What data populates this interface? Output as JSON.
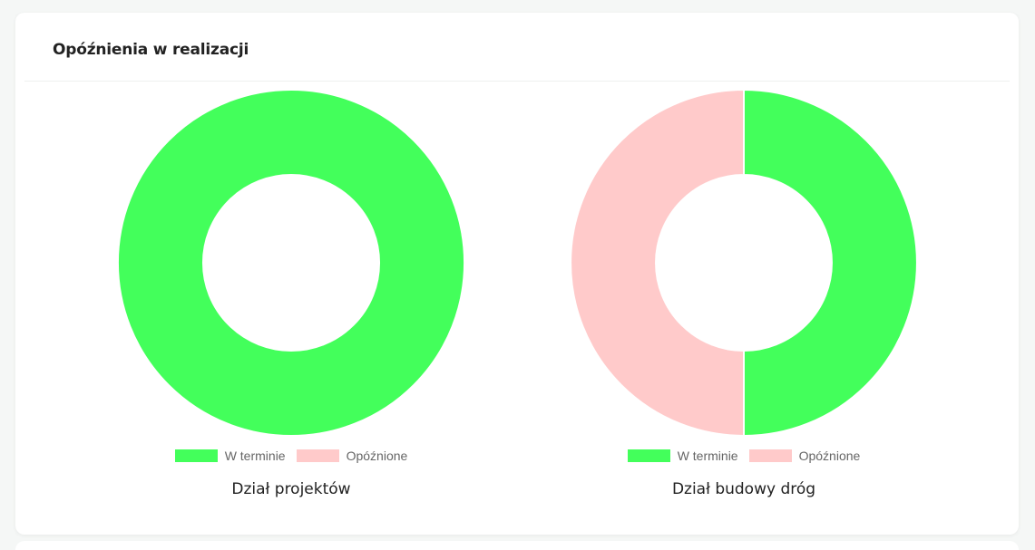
{
  "card": {
    "title": "Opóźnienia w realizacji"
  },
  "colors": {
    "on_time": "#43ff5b",
    "delayed": "#ffcaca",
    "separator": "#ffffff"
  },
  "chart_data": [
    {
      "type": "pie",
      "title": "Dział projektów",
      "categories": [
        "W terminie",
        "Opóźnione"
      ],
      "values": [
        100,
        0
      ],
      "legend": "bottom"
    },
    {
      "type": "pie",
      "title": "Dział budowy dróg",
      "categories": [
        "W terminie",
        "Opóźnione"
      ],
      "values": [
        50,
        50
      ],
      "legend": "bottom"
    }
  ]
}
